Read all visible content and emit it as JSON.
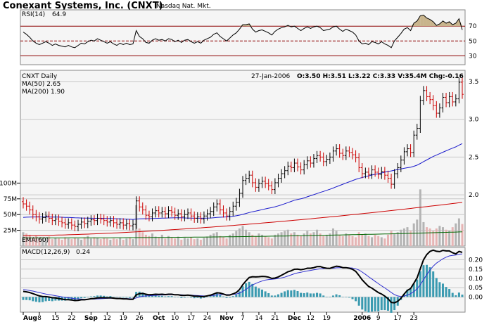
{
  "header": {
    "title": "Conexant Systems, Inc. (CNXT)",
    "exchange": "Nasdaq Nat. Mkt."
  },
  "colors": {
    "up_bar": "#000000",
    "down_bar": "#cc0000",
    "ma50": "#1a1acc",
    "ma200": "#cc0000",
    "ema60": "#006600",
    "rsi_line": "#000000",
    "rsi_fill": "#c8b48c",
    "macd_line": "#000000",
    "signal_line": "#3030d0",
    "histogram": "#3a9ab0",
    "grid": "#c8c8c8",
    "panel_bg": "#f5f5f5"
  },
  "rsi_panel": {
    "label": "RSI(14)",
    "value": "64.9",
    "ticks": [
      "70",
      "50",
      "30"
    ]
  },
  "price_panel": {
    "label": "CNXT Daily",
    "date": "27-Jan-2006",
    "ohlc": "O:3.50 H:3.51 L:3.22 C:3.33 V:35.4M Chg:-0.16",
    "ma50": "MA(50) 2.65",
    "ma200": "MA(200) 1.90",
    "ema60": "EMA(60)",
    "price_ticks": [
      "3.5",
      "3.0",
      "2.5",
      "2.0"
    ],
    "volume_ticks": [
      "100M",
      "75M",
      "50M",
      "25M"
    ]
  },
  "macd_panel": {
    "label": "MACD(12,26,9)",
    "value": "0.24",
    "ticks": [
      "0.20",
      "0.15",
      "0.10",
      "0.05",
      "0.00"
    ]
  },
  "x_axis": {
    "labels": [
      "Aug",
      "8",
      "15",
      "22",
      "Sep",
      "12",
      "19",
      "26",
      "Oct",
      "10",
      "17",
      "24",
      "Nov",
      "7",
      "14",
      "21",
      "Dec",
      "12",
      "19",
      "2006",
      "9",
      "17",
      "23"
    ]
  },
  "chart_data": {
    "type": "ohlc",
    "price_axis": {
      "ylim": [
        1.35,
        3.62
      ],
      "ticks": [
        2.0,
        2.5,
        3.0,
        3.5
      ]
    },
    "volume_axis_millions": {
      "ylim": [
        0,
        125
      ],
      "ticks": [
        25,
        50,
        75,
        100
      ]
    },
    "rsi_axis": {
      "ylim": [
        18,
        92
      ],
      "ticks": [
        30,
        50,
        70
      ]
    },
    "macd_axis": {
      "ylim": [
        -0.07,
        0.255
      ],
      "ticks": [
        0.0,
        0.05,
        0.1,
        0.15,
        0.2
      ]
    },
    "close": [
      1.88,
      1.85,
      1.8,
      1.74,
      1.71,
      1.68,
      1.7,
      1.72,
      1.69,
      1.66,
      1.68,
      1.65,
      1.63,
      1.61,
      1.63,
      1.6,
      1.58,
      1.61,
      1.64,
      1.62,
      1.65,
      1.67,
      1.66,
      1.69,
      1.68,
      1.66,
      1.64,
      1.66,
      1.63,
      1.61,
      1.63,
      1.6,
      1.62,
      1.59,
      1.61,
      1.92,
      1.84,
      1.8,
      1.73,
      1.71,
      1.76,
      1.79,
      1.76,
      1.78,
      1.75,
      1.79,
      1.77,
      1.73,
      1.75,
      1.71,
      1.74,
      1.76,
      1.72,
      1.69,
      1.71,
      1.68,
      1.72,
      1.75,
      1.78,
      1.84,
      1.88,
      1.8,
      1.76,
      1.72,
      1.78,
      1.85,
      1.9,
      2.02,
      2.19,
      2.22,
      2.26,
      2.16,
      2.1,
      2.15,
      2.18,
      2.15,
      2.12,
      2.07,
      2.16,
      2.22,
      2.28,
      2.32,
      2.38,
      2.36,
      2.42,
      2.37,
      2.33,
      2.4,
      2.45,
      2.42,
      2.48,
      2.52,
      2.5,
      2.44,
      2.47,
      2.5,
      2.58,
      2.61,
      2.55,
      2.52,
      2.58,
      2.56,
      2.53,
      2.49,
      2.36,
      2.28,
      2.3,
      2.27,
      2.33,
      2.3,
      2.27,
      2.31,
      2.26,
      2.22,
      2.14,
      2.28,
      2.36,
      2.46,
      2.57,
      2.61,
      2.56,
      2.79,
      2.88,
      3.25,
      3.38,
      3.3,
      3.26,
      3.18,
      3.08,
      3.15,
      3.29,
      3.22,
      3.3,
      3.23,
      3.27,
      3.49,
      3.33
    ],
    "volume_millions": [
      22,
      20,
      18,
      14,
      16,
      13,
      14,
      12,
      15,
      11,
      13,
      12,
      10,
      14,
      12,
      11,
      13,
      12,
      10,
      14,
      16,
      12,
      14,
      13,
      11,
      13,
      12,
      10,
      12,
      11,
      13,
      10,
      12,
      14,
      11,
      65,
      28,
      22,
      18,
      16,
      20,
      15,
      14,
      18,
      12,
      16,
      14,
      12,
      15,
      10,
      13,
      12,
      14,
      11,
      12,
      10,
      13,
      15,
      18,
      20,
      22,
      16,
      14,
      12,
      18,
      20,
      24,
      28,
      32,
      26,
      22,
      18,
      16,
      20,
      18,
      15,
      14,
      12,
      18,
      20,
      22,
      24,
      26,
      20,
      22,
      18,
      16,
      20,
      24,
      20,
      22,
      26,
      20,
      16,
      18,
      20,
      28,
      24,
      18,
      16,
      20,
      18,
      16,
      14,
      22,
      18,
      20,
      16,
      14,
      18,
      16,
      14,
      12,
      18,
      24,
      20,
      22,
      26,
      28,
      30,
      24,
      36,
      42,
      90,
      38,
      30,
      28,
      24,
      28,
      32,
      30,
      26,
      24,
      30,
      36,
      44,
      35
    ],
    "rsi": [
      62,
      59,
      55,
      50,
      47,
      45,
      47,
      49,
      47,
      44,
      46,
      44,
      43,
      42,
      44,
      42,
      41,
      44,
      47,
      46,
      49,
      51,
      50,
      53,
      51,
      49,
      47,
      49,
      46,
      44,
      47,
      45,
      47,
      45,
      46,
      64,
      56,
      53,
      48,
      47,
      51,
      53,
      51,
      52,
      50,
      53,
      52,
      49,
      51,
      48,
      51,
      52,
      49,
      47,
      49,
      47,
      51,
      53,
      55,
      59,
      61,
      56,
      53,
      50,
      54,
      58,
      61,
      66,
      72,
      72,
      73,
      66,
      62,
      64,
      65,
      63,
      61,
      58,
      63,
      66,
      68,
      69,
      71,
      69,
      70,
      67,
      64,
      67,
      69,
      67,
      69,
      70,
      68,
      64,
      65,
      66,
      69,
      70,
      66,
      63,
      66,
      64,
      62,
      58,
      50,
      46,
      47,
      45,
      49,
      48,
      46,
      49,
      46,
      44,
      41,
      50,
      55,
      60,
      66,
      68,
      64,
      74,
      77,
      84,
      85,
      81,
      79,
      76,
      71,
      73,
      77,
      74,
      76,
      72,
      74,
      80,
      65
    ],
    "macd": [
      0.03,
      0.028,
      0.024,
      0.018,
      0.012,
      0.006,
      0.003,
      0.002,
      0.0,
      -0.004,
      -0.005,
      -0.008,
      -0.011,
      -0.014,
      -0.014,
      -0.016,
      -0.019,
      -0.018,
      -0.015,
      -0.015,
      -0.012,
      -0.009,
      -0.008,
      -0.005,
      -0.004,
      -0.004,
      -0.005,
      -0.004,
      -0.006,
      -0.008,
      -0.008,
      -0.01,
      -0.01,
      -0.012,
      -0.012,
      0.012,
      0.018,
      0.019,
      0.015,
      0.012,
      0.013,
      0.015,
      0.014,
      0.015,
      0.013,
      0.015,
      0.015,
      0.012,
      0.012,
      0.009,
      0.009,
      0.01,
      0.008,
      0.005,
      0.005,
      0.002,
      0.003,
      0.006,
      0.01,
      0.016,
      0.023,
      0.021,
      0.016,
      0.01,
      0.011,
      0.017,
      0.024,
      0.04,
      0.066,
      0.087,
      0.105,
      0.109,
      0.108,
      0.109,
      0.111,
      0.11,
      0.107,
      0.1,
      0.102,
      0.108,
      0.117,
      0.126,
      0.136,
      0.141,
      0.149,
      0.15,
      0.147,
      0.15,
      0.155,
      0.155,
      0.158,
      0.163,
      0.164,
      0.158,
      0.155,
      0.154,
      0.16,
      0.166,
      0.164,
      0.158,
      0.158,
      0.155,
      0.149,
      0.138,
      0.116,
      0.092,
      0.074,
      0.057,
      0.048,
      0.036,
      0.024,
      0.016,
      0.005,
      -0.009,
      -0.029,
      -0.031,
      -0.023,
      -0.007,
      0.016,
      0.036,
      0.046,
      0.074,
      0.103,
      0.153,
      0.2,
      0.228,
      0.245,
      0.252,
      0.246,
      0.244,
      0.251,
      0.248,
      0.248,
      0.238,
      0.232,
      0.245,
      0.24
    ],
    "macd_signal": [
      0.04,
      0.038,
      0.035,
      0.032,
      0.028,
      0.024,
      0.02,
      0.016,
      0.013,
      0.01,
      0.007,
      0.004,
      0.001,
      -0.002,
      -0.004,
      -0.006,
      -0.009,
      -0.01,
      -0.011,
      -0.012,
      -0.012,
      -0.011,
      -0.011,
      -0.01,
      -0.009,
      -0.008,
      -0.007,
      -0.007,
      -0.007,
      -0.007,
      -0.007,
      -0.008,
      -0.008,
      -0.009,
      -0.01,
      -0.005,
      0.0,
      0.004,
      0.006,
      0.007,
      0.008,
      0.009,
      0.01,
      0.011,
      0.011,
      0.012,
      0.012,
      0.012,
      0.012,
      0.012,
      0.011,
      0.011,
      0.01,
      0.009,
      0.008,
      0.007,
      0.006,
      0.006,
      0.007,
      0.009,
      0.011,
      0.013,
      0.014,
      0.013,
      0.013,
      0.014,
      0.016,
      0.021,
      0.03,
      0.041,
      0.054,
      0.065,
      0.073,
      0.08,
      0.086,
      0.091,
      0.094,
      0.095,
      0.097,
      0.099,
      0.103,
      0.107,
      0.113,
      0.119,
      0.125,
      0.13,
      0.133,
      0.137,
      0.14,
      0.143,
      0.146,
      0.149,
      0.152,
      0.153,
      0.154,
      0.154,
      0.155,
      0.157,
      0.158,
      0.158,
      0.158,
      0.157,
      0.156,
      0.152,
      0.145,
      0.134,
      0.122,
      0.109,
      0.097,
      0.084,
      0.072,
      0.06,
      0.049,
      0.037,
      0.024,
      0.013,
      0.006,
      0.003,
      0.005,
      0.011,
      0.018,
      0.029,
      0.044,
      0.066,
      0.093,
      0.12,
      0.145,
      0.166,
      0.182,
      0.194,
      0.206,
      0.214,
      0.221,
      0.224,
      0.226,
      0.23,
      0.232
    ]
  }
}
